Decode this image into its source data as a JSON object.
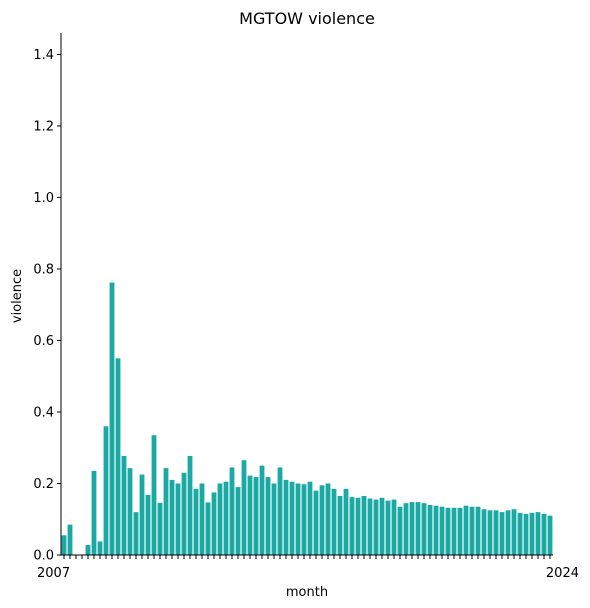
{
  "chart_data": {
    "type": "bar",
    "title": "MGTOW violence",
    "xlabel": "month",
    "ylabel": "violence",
    "ylim": [
      0,
      1.46
    ],
    "yticks": [
      "0.0",
      "0.2",
      "0.4",
      "0.6",
      "0.8",
      "1.0",
      "1.2",
      "1.4"
    ],
    "grid": false,
    "legend": "none",
    "bar_color": "#1aa9a3",
    "x_first_label": "2007",
    "x_last_label": "2024",
    "values": [
      0.055,
      0.085,
      0,
      0,
      0.028,
      0.235,
      0.038,
      0.36,
      0.762,
      0.55,
      0.277,
      0.243,
      0.12,
      0.225,
      0.168,
      0.335,
      0.146,
      0.243,
      0.21,
      0.2,
      0.23,
      0.277,
      0.185,
      0.2,
      0.147,
      0.175,
      0.2,
      0.205,
      0.245,
      0.19,
      0.265,
      0.222,
      0.218,
      0.25,
      0.218,
      0.2,
      0.245,
      0.21,
      0.205,
      0.2,
      0.198,
      0.205,
      0.18,
      0.195,
      0.2,
      0.185,
      0.165,
      0.185,
      0.162,
      0.16,
      0.165,
      0.158,
      0.155,
      0.16,
      0.152,
      0.155,
      0.135,
      0.145,
      0.148,
      0.148,
      0.145,
      0.14,
      0.138,
      0.135,
      0.132,
      0.132,
      0.132,
      0.138,
      0.135,
      0.135,
      0.128,
      0.125,
      0.125,
      0.12,
      0.125,
      0.128,
      0.118,
      0.115,
      0.118,
      0.12,
      0.115,
      0.11
    ]
  }
}
